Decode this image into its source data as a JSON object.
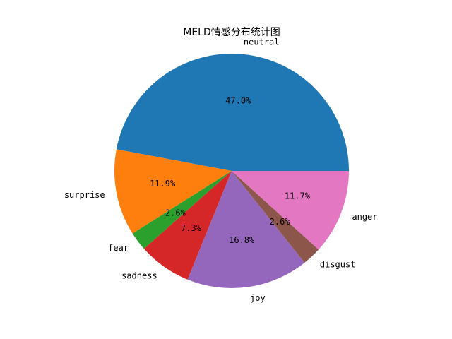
{
  "chart_data": {
    "type": "pie",
    "title": "MELD情感分布统计图",
    "start_angle_deg": 0,
    "direction": "counterclockwise",
    "slices": [
      {
        "label": "neutral",
        "value": 47.0,
        "pct_label": "47.0%",
        "color": "#1f77b4"
      },
      {
        "label": "surprise",
        "value": 11.9,
        "pct_label": "11.9%",
        "color": "#ff7f0e"
      },
      {
        "label": "fear",
        "value": 2.6,
        "pct_label": "2.6%",
        "color": "#2ca02c"
      },
      {
        "label": "sadness",
        "value": 7.3,
        "pct_label": "7.3%",
        "color": "#d62728"
      },
      {
        "label": "joy",
        "value": 16.8,
        "pct_label": "16.8%",
        "color": "#9467bd"
      },
      {
        "label": "disgust",
        "value": 2.6,
        "pct_label": "2.6%",
        "color": "#8c564b"
      },
      {
        "label": "anger",
        "value": 11.7,
        "pct_label": "11.7%",
        "color": "#e377c2"
      }
    ]
  }
}
